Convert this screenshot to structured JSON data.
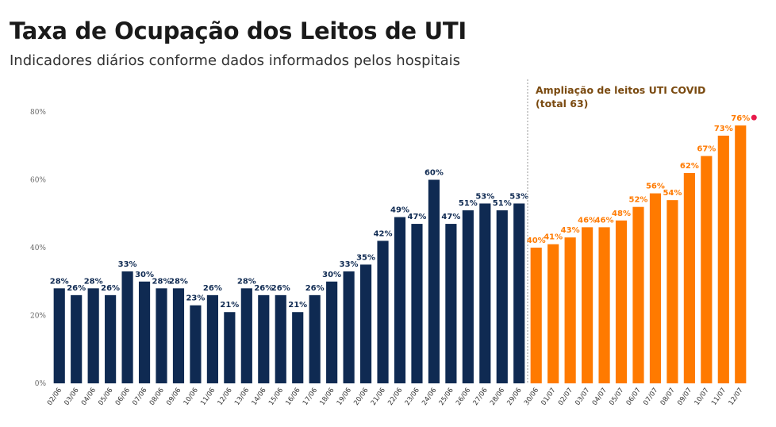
{
  "header": {
    "title": "Taxa de Ocupação dos Leitos de UTI",
    "subtitle": "Indicadores diários conforme dados informados pelos hospitais"
  },
  "colors": {
    "before": "#0f2a52",
    "after": "#ff7a00",
    "annotation": "#7a4a10",
    "marker": "#e8194a"
  },
  "chart_data": {
    "type": "bar",
    "title": "Taxa de Ocupação dos Leitos de UTI",
    "subtitle": "Indicadores diários conforme dados informados pelos hospitais",
    "xlabel": "",
    "ylabel": "",
    "ylim": [
      0,
      80
    ],
    "yticks": [
      "0%",
      "20%",
      "40%",
      "60%",
      "80%"
    ],
    "grid": false,
    "categories": [
      "02/06",
      "03/06",
      "04/06",
      "05/06",
      "06/06",
      "07/06",
      "08/06",
      "09/06",
      "10/06",
      "11/06",
      "12/06",
      "13/06",
      "14/06",
      "15/06",
      "16/06",
      "17/06",
      "18/06",
      "19/06",
      "20/06",
      "21/06",
      "22/06",
      "23/06",
      "24/06",
      "25/06",
      "26/06",
      "27/06",
      "28/06",
      "29/06",
      "30/06",
      "01/07",
      "02/07",
      "03/07",
      "04/07",
      "05/07",
      "06/07",
      "07/07",
      "08/07",
      "09/07",
      "10/07",
      "11/07",
      "12/07"
    ],
    "values": [
      28,
      26,
      28,
      26,
      33,
      30,
      28,
      28,
      23,
      26,
      21,
      28,
      26,
      26,
      21,
      26,
      30,
      33,
      35,
      42,
      49,
      47,
      60,
      47,
      51,
      53,
      51,
      53,
      40,
      41,
      43,
      46,
      46,
      48,
      52,
      56,
      54,
      62,
      67,
      73,
      76
    ],
    "labels": [
      "28%",
      "26%",
      "28%",
      "26%",
      "33%",
      "30%",
      "28%",
      "28%",
      "23%",
      "26%",
      "21%",
      "28%",
      "26%",
      "26%",
      "21%",
      "26%",
      "30%",
      "33%",
      "35%",
      "42%",
      "49%",
      "47%",
      "60%",
      "47%",
      "51%",
      "53%",
      "51%",
      "53%",
      "40%",
      "41%",
      "43%",
      "46%",
      "46%",
      "48%",
      "52%",
      "56%",
      "54%",
      "62%",
      "67%",
      "73%",
      "76%"
    ],
    "split_index": 28,
    "annotation_lines": [
      "Ampliação de leitos UTI COVID",
      "(total 63)"
    ]
  }
}
